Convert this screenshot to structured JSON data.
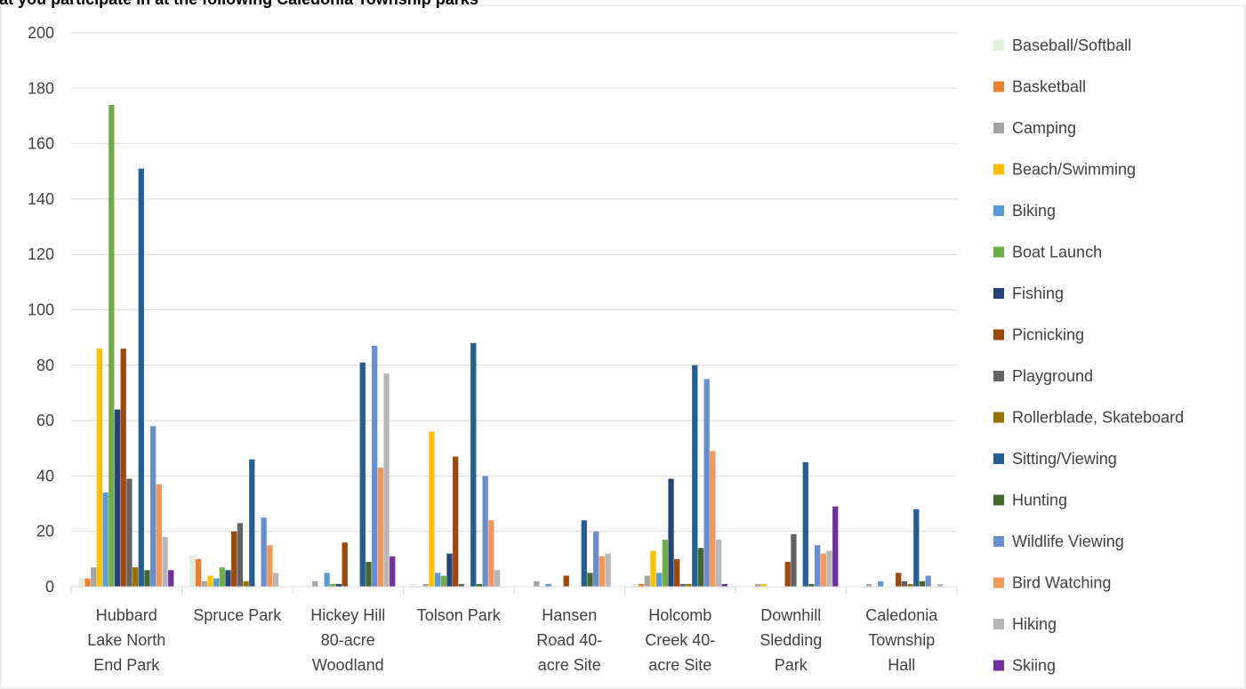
{
  "chart_data": {
    "type": "bar",
    "title": "Indicate recreational activities that you participate in at the following Caledonia Township parks",
    "ylim": [
      0,
      200
    ],
    "yticks": [
      0,
      20,
      40,
      60,
      80,
      100,
      120,
      140,
      160,
      180,
      200
    ],
    "grid": true,
    "legend_position": "right",
    "categories": [
      [
        "Hubbard",
        "Lake North",
        "End Park"
      ],
      [
        "Spruce Park"
      ],
      [
        "Hickey Hill",
        "80-acre",
        "Woodland"
      ],
      [
        "Tolson Park"
      ],
      [
        "Hansen",
        "Road 40-",
        "acre Site"
      ],
      [
        "Holcomb",
        "Creek 40-",
        "acre Site"
      ],
      [
        "Downhill",
        "Sledding",
        "Park"
      ],
      [
        "Caledonia",
        "Township",
        "Hall"
      ]
    ],
    "series": [
      {
        "name": "Baseball/Softball",
        "color": "#E2EFDA",
        "values": [
          3,
          11,
          0,
          1,
          0,
          1,
          0,
          0
        ]
      },
      {
        "name": "Basketball",
        "color": "#ED7D31",
        "values": [
          3,
          10,
          0,
          0,
          0,
          1,
          0,
          0
        ]
      },
      {
        "name": "Camping",
        "color": "#A5A5A5",
        "values": [
          7,
          2,
          2,
          1,
          2,
          4,
          1,
          1
        ]
      },
      {
        "name": "Beach/Swimming",
        "color": "#FFC000",
        "values": [
          86,
          4,
          0,
          56,
          0,
          13,
          1,
          0
        ]
      },
      {
        "name": "Biking",
        "color": "#5B9BD5",
        "values": [
          34,
          3,
          5,
          5,
          1,
          5,
          0,
          2
        ]
      },
      {
        "name": "Boat Launch",
        "color": "#70AD47",
        "values": [
          174,
          7,
          1,
          4,
          0,
          17,
          0,
          0
        ]
      },
      {
        "name": "Fishing",
        "color": "#264478",
        "values": [
          64,
          6,
          1,
          12,
          0,
          39,
          0,
          0
        ]
      },
      {
        "name": "Picnicking",
        "color": "#9E480E",
        "values": [
          86,
          20,
          16,
          47,
          4,
          10,
          9,
          5
        ]
      },
      {
        "name": "Playground",
        "color": "#636363",
        "values": [
          39,
          23,
          0,
          1,
          0,
          1,
          19,
          2
        ]
      },
      {
        "name": "Rollerblade, Skateboard",
        "color": "#997300",
        "values": [
          7,
          2,
          0,
          0,
          0,
          1,
          0,
          1
        ]
      },
      {
        "name": "Sitting/Viewing",
        "color": "#255E91",
        "values": [
          151,
          46,
          81,
          88,
          24,
          80,
          45,
          28
        ]
      },
      {
        "name": "Hunting",
        "color": "#43682B",
        "values": [
          6,
          0,
          9,
          1,
          5,
          14,
          1,
          2
        ]
      },
      {
        "name": "Wildlife Viewing",
        "color": "#698ED0",
        "values": [
          58,
          25,
          87,
          40,
          20,
          75,
          15,
          4
        ]
      },
      {
        "name": "Bird Watching",
        "color": "#F1975A",
        "values": [
          37,
          15,
          43,
          24,
          11,
          49,
          12,
          0
        ]
      },
      {
        "name": "Hiking",
        "color": "#B7B7B7",
        "values": [
          18,
          5,
          77,
          6,
          12,
          17,
          13,
          1
        ]
      },
      {
        "name": "Skiing",
        "color": "#7030A0",
        "values": [
          6,
          0,
          11,
          0,
          0,
          1,
          29,
          0
        ]
      }
    ]
  }
}
